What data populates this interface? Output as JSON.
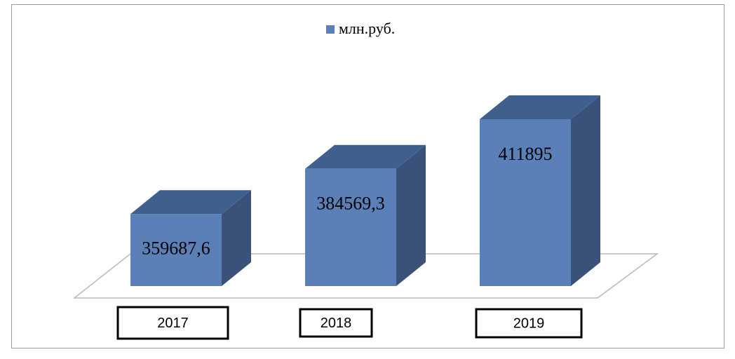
{
  "chart_data": {
    "type": "bar3d",
    "legend": "млн.руб.",
    "categories": [
      "2017",
      "2018",
      "2019"
    ],
    "values": [
      359687.6,
      384569.3,
      411895
    ],
    "value_labels": [
      "359687,6",
      "384569,3",
      "411895"
    ],
    "color": "#5b80b8",
    "ylim": [
      320000,
      420000
    ]
  }
}
